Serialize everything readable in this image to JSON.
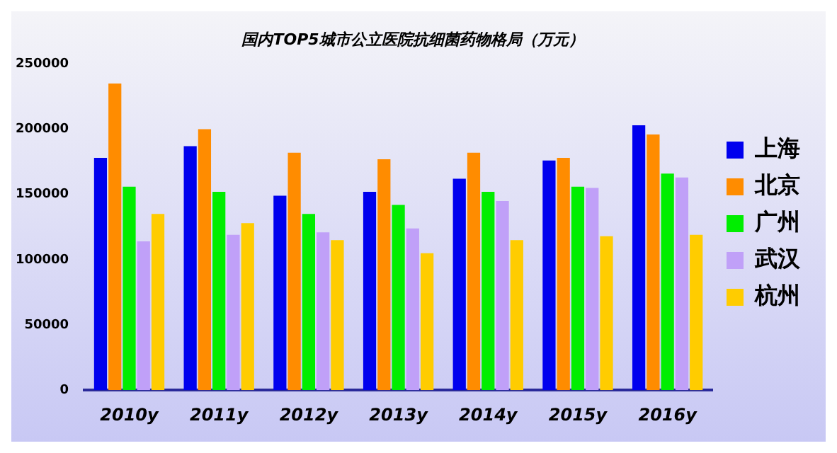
{
  "chart_data": {
    "type": "bar",
    "title": "国内TOP5城市公立医院抗细菌药物格局（万元）",
    "categories": [
      "2010y",
      "2011y",
      "2012y",
      "2013y",
      "2014y",
      "2015y",
      "2016y"
    ],
    "series": [
      {
        "name": "上海",
        "color": "#0000ee",
        "values": [
          178000,
          187000,
          149000,
          152000,
          162000,
          176000,
          203000
        ]
      },
      {
        "name": "北京",
        "color": "#ff8c00",
        "values": [
          235000,
          200000,
          182000,
          177000,
          182000,
          178000,
          196000
        ]
      },
      {
        "name": "广州",
        "color": "#00ee00",
        "values": [
          156000,
          152000,
          135000,
          142000,
          152000,
          156000,
          166000
        ]
      },
      {
        "name": "武汉",
        "color": "#c0a0f8",
        "values": [
          114000,
          119000,
          121000,
          124000,
          145000,
          155000,
          163000
        ]
      },
      {
        "name": "杭州",
        "color": "#ffcc00",
        "values": [
          135000,
          128000,
          115000,
          105000,
          115000,
          118000,
          119000
        ]
      }
    ],
    "ylim": [
      0,
      250000
    ],
    "yticks": [
      0,
      50000,
      100000,
      150000,
      200000,
      250000
    ],
    "grid": false,
    "legend": "right"
  }
}
